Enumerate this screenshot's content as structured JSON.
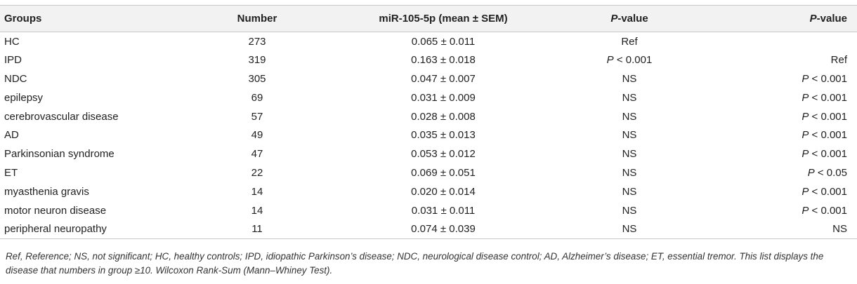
{
  "table": {
    "headers": {
      "groups": "Groups",
      "number": "Number",
      "mir": "miR-105-5p (mean ± SEM)",
      "p1_italic": "P",
      "p1_rest": "-value",
      "p2_italic": "P",
      "p2_rest": "-value"
    },
    "rows": [
      {
        "group": "HC",
        "number": "273",
        "mir": "0.065 ± 0.011",
        "p1": "Ref",
        "p2": ""
      },
      {
        "group": "IPD",
        "number": "319",
        "mir": "0.163 ± 0.018",
        "p1": "P < 0.001",
        "p2": "Ref"
      },
      {
        "group": "NDC",
        "number": "305",
        "mir": "0.047 ± 0.007",
        "p1": "NS",
        "p2": "P < 0.001"
      },
      {
        "group": "epilepsy",
        "number": "69",
        "mir": "0.031 ± 0.009",
        "p1": "NS",
        "p2": "P < 0.001"
      },
      {
        "group": "cerebrovascular disease",
        "number": "57",
        "mir": "0.028 ± 0.008",
        "p1": "NS",
        "p2": "P < 0.001"
      },
      {
        "group": "AD",
        "number": "49",
        "mir": "0.035 ± 0.013",
        "p1": "NS",
        "p2": "P < 0.001"
      },
      {
        "group": "Parkinsonian syndrome",
        "number": "47",
        "mir": "0.053 ± 0.012",
        "p1": "NS",
        "p2": "P < 0.001"
      },
      {
        "group": "ET",
        "number": "22",
        "mir": "0.069 ± 0.051",
        "p1": "NS",
        "p2": "P < 0.05"
      },
      {
        "group": "myasthenia gravis",
        "number": "14",
        "mir": "0.020 ± 0.014",
        "p1": "NS",
        "p2": "P < 0.001"
      },
      {
        "group": "motor neuron disease",
        "number": "14",
        "mir": "0.031 ± 0.011",
        "p1": "NS",
        "p2": "P < 0.001"
      },
      {
        "group": "peripheral neuropathy",
        "number": "11",
        "mir": "0.074 ± 0.039",
        "p1": "NS",
        "p2": "NS"
      }
    ]
  },
  "footnote": "Ref, Reference; NS, not significant; HC, healthy controls; IPD, idiopathic Parkinson’s disease; NDC, neurological disease control; AD, Alzheimer’s disease; ET, essential tremor. This list displays the disease that numbers in group ≥10. Wilcoxon Rank-Sum (Mann–Whiney Test)."
}
